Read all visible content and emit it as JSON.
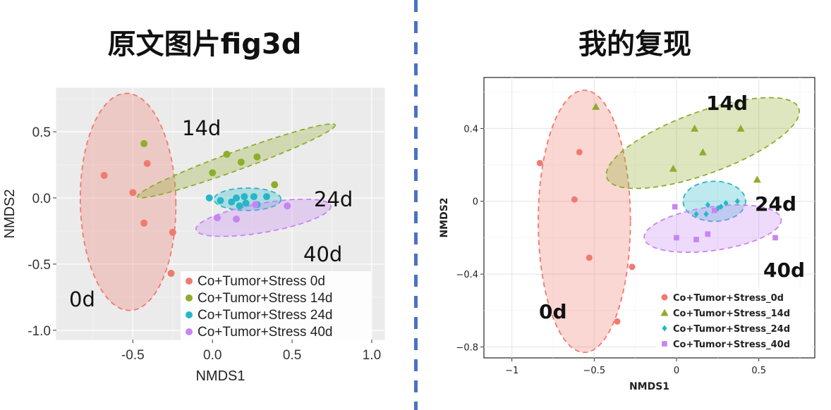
{
  "headings": {
    "left": "原文图片fig3d",
    "right": "我的复现"
  },
  "colors": {
    "0d": "#f07a6e",
    "14d": "#8dad2c",
    "24d": "#25b7c9",
    "40d": "#c685f2",
    "divider": "#4a72c4"
  },
  "chart_data": [
    {
      "type": "scatter",
      "panel": "original",
      "xlabel": "NMDS1",
      "ylabel": "NMDS2",
      "xlim": [
        -0.98,
        1.08
      ],
      "ylim": [
        -1.07,
        0.83
      ],
      "xticks": [
        -0.5,
        0.0,
        0.5,
        1.0
      ],
      "xtick_labels": [
        "-0.5",
        "0.0",
        "0.5",
        "1.0"
      ],
      "yticks": [
        0.5,
        0.0,
        -0.5,
        -1.0
      ],
      "ytick_labels": [
        "0.5",
        "0.0",
        "-0.5",
        "-1.0"
      ],
      "grid": true,
      "legend_position": "bottom-right",
      "group_labels": [
        "0d",
        "14d",
        "24d",
        "40d"
      ],
      "series": [
        {
          "name": "Co+Tumor+Stress 0d",
          "color_key": "0d",
          "marker": "circle",
          "x": [
            -0.68,
            -0.5,
            -0.43,
            -0.41,
            -0.25,
            -0.26
          ],
          "y": [
            0.17,
            0.04,
            -0.19,
            0.26,
            -0.26,
            -0.57
          ]
        },
        {
          "name": "Co+Tumor+Stress 14d",
          "color_key": "14d",
          "marker": "circle",
          "x": [
            -0.43,
            0.0,
            0.09,
            0.18,
            0.28,
            0.39
          ],
          "y": [
            0.41,
            0.19,
            0.33,
            0.27,
            0.31,
            0.1
          ]
        },
        {
          "name": "Co+Tumor+Stress 24d",
          "color_key": "24d",
          "marker": "circle",
          "x": [
            -0.02,
            0.05,
            0.12,
            0.15,
            0.2,
            0.21,
            0.26,
            0.34,
            0.28,
            0.17
          ],
          "y": [
            0.0,
            -0.02,
            -0.03,
            0.0,
            0.01,
            -0.04,
            0.01,
            0.01,
            -0.05,
            -0.06
          ]
        },
        {
          "name": "Co+Tumor+Stress 40d",
          "color_key": "40d",
          "marker": "circle",
          "x": [
            0.03,
            0.15,
            0.47,
            0.27
          ],
          "y": [
            -0.15,
            -0.16,
            -0.06,
            -0.05
          ]
        }
      ],
      "ellipses": [
        {
          "group": "0d",
          "cx": -0.53,
          "cy": -0.03,
          "rx": 0.3,
          "ry": 0.82,
          "angle": 1
        },
        {
          "group": "14d",
          "cx": 0.15,
          "cy": 0.28,
          "rx": 0.66,
          "ry": 0.07,
          "angle": 20
        },
        {
          "group": "24d",
          "cx": 0.22,
          "cy": -0.01,
          "rx": 0.21,
          "ry": 0.085,
          "angle": 0
        },
        {
          "group": "40d",
          "cx": 0.32,
          "cy": -0.15,
          "rx": 0.43,
          "ry": 0.11,
          "angle": 10
        }
      ]
    },
    {
      "type": "scatter",
      "panel": "reproduction",
      "xlabel": "NMDS1",
      "ylabel": "NMDS2",
      "xlim": [
        -1.17,
        0.84
      ],
      "ylim": [
        -0.86,
        0.68
      ],
      "xticks": [
        -1,
        -0.5,
        0,
        0.5
      ],
      "xtick_labels": [
        "−1",
        "−0.5",
        "0",
        "0.5"
      ],
      "yticks": [
        0.4,
        0,
        -0.4,
        -0.8
      ],
      "ytick_labels": [
        "0.4",
        "0",
        "−0.4",
        "−0.8"
      ],
      "grid": true,
      "legend_position": "bottom-right",
      "group_labels": [
        "0d",
        "14d",
        "24d",
        "40d"
      ],
      "series": [
        {
          "name": "Co+Tumor+Stress_0d",
          "color_key": "0d",
          "marker": "circle",
          "x": [
            -0.83,
            -0.59,
            -0.62,
            -0.53,
            -0.27,
            -0.36
          ],
          "y": [
            0.21,
            0.27,
            0.01,
            -0.31,
            -0.36,
            -0.66
          ]
        },
        {
          "name": "Co+Tumor+Stress_14d",
          "color_key": "14d",
          "marker": "triangle",
          "x": [
            -0.49,
            -0.02,
            0.11,
            0.16,
            0.39,
            0.49
          ],
          "y": [
            0.52,
            0.18,
            0.4,
            0.27,
            0.4,
            0.12
          ]
        },
        {
          "name": "Co+Tumor+Stress_24d",
          "color_key": "24d",
          "marker": "diamond",
          "x": [
            0.12,
            0.19,
            0.27,
            0.3,
            0.37,
            0.18,
            0.25
          ],
          "y": [
            -0.07,
            -0.02,
            -0.03,
            -0.01,
            0.0,
            -0.07,
            -0.04
          ]
        },
        {
          "name": "Co+Tumor+Stress_40d",
          "color_key": "40d",
          "marker": "square",
          "x": [
            -0.01,
            0.0,
            0.12,
            0.19,
            0.23,
            0.6
          ],
          "y": [
            -0.03,
            -0.2,
            -0.21,
            -0.18,
            -0.05,
            -0.2
          ]
        }
      ],
      "ellipses": [
        {
          "group": "0d",
          "cx": -0.56,
          "cy": -0.11,
          "rx": 0.28,
          "ry": 0.72,
          "angle": 0
        },
        {
          "group": "14d",
          "cx": 0.16,
          "cy": 0.32,
          "rx": 0.62,
          "ry": 0.17,
          "angle": 20
        },
        {
          "group": "24d",
          "cx": 0.23,
          "cy": 0.0,
          "rx": 0.19,
          "ry": 0.11,
          "angle": 0
        },
        {
          "group": "40d",
          "cx": 0.22,
          "cy": -0.15,
          "rx": 0.42,
          "ry": 0.12,
          "angle": 8
        }
      ]
    }
  ]
}
